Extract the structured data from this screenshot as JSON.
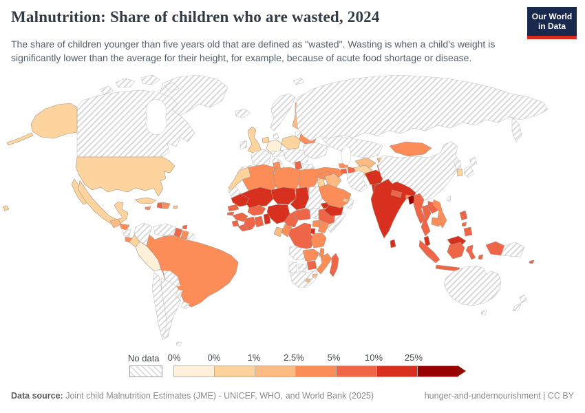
{
  "header": {
    "title": "Malnutrition: Share of children who are wasted, 2024",
    "subtitle": "The share of children younger than five years old that are defined as \"wasted\". Wasting is when a child’s weight is significantly lower than the average for their height, for example, because of acute food shortage or disease.",
    "logo": {
      "line1": "Our World",
      "line2": "in Data",
      "bg_color": "#18294d",
      "accent_color": "#dc2a20"
    }
  },
  "legend": {
    "no_data_label": "No data",
    "tick_labels": [
      "0%",
      "0%",
      "1%",
      "2.5%",
      "5%",
      "10%",
      "25%"
    ],
    "order": [
      "b0",
      "b1",
      "b2",
      "b3",
      "b4",
      "b5",
      "b6"
    ],
    "colors": {
      "b0": "#FEF0D9",
      "b1": "#FDD49E",
      "b2": "#FDBB84",
      "b3": "#FC8D59",
      "b4": "#EF6548",
      "b5": "#D7301F",
      "b6": "#990000"
    },
    "arrow_color": "#8d0b02"
  },
  "footer": {
    "source_label": "Data source:",
    "source_text": " Joint child Malnutrition Estimates (JME) - UNICEF, WHO, and World Bank (2025)",
    "right_text": "hunger-and-undernourishment | CC BY"
  },
  "map": {
    "countries": {
      "greenland": "nodata",
      "canada": "nodata",
      "canada-arctic1": "nodata",
      "canada-arctic2": "nodata",
      "canada-arctic3": "nodata",
      "canada-arctic4": "nodata",
      "iceland": "nodata",
      "svalbard": "nodata",
      "alaska": "b1",
      "aleutians": "b1",
      "usa": "b1",
      "hawaii": "b1",
      "mexico": "b1",
      "baja": "b1",
      "guatemala": "b2",
      "honduras": "b3",
      "nicaragua": "nodata",
      "costarica": "b3",
      "panama": "b3",
      "cuba": "b1",
      "jamaica": "b3",
      "haiti": "b4",
      "domrep": "b3",
      "puertorico": "b2",
      "trinidad": "b4",
      "colombia": "nodata",
      "venezuela": "nodata",
      "guyana": "b4",
      "suriname": "b3",
      "frguiana": "nodata",
      "ecuador": "b1",
      "peru": "b0",
      "brazil": "b3",
      "bolivia": "nodata",
      "paraguay": "nodata",
      "uruguay": "nodata",
      "chile": "nodata",
      "argentina": "nodata",
      "falklands": "nodata",
      "uk": "b1",
      "ireland": "nodata",
      "norway-sweden": "nodata",
      "denmark": "nodata",
      "finland": "b2",
      "baltics": "nodata",
      "germany": "b0",
      "lowcountries": "b1",
      "france": "nodata",
      "iberia": "nodata",
      "italy": "nodata",
      "alpine": "nodata",
      "poland": "b1",
      "centraleurope": "nodata",
      "belarus": "b3",
      "ukraine": "nodata",
      "serbia": "b4",
      "greece": "nodata",
      "bulgaria": "nodata",
      "turkey": "b3",
      "georgia": "b3",
      "armenia": "b4",
      "azerbaijan": "b4",
      "russia": "nodata",
      "kamchatka": "nodata",
      "kazakhstan": "nodata",
      "turkmenistan": "b1",
      "uzbekistan": "b2",
      "kyrgyzstan": "b2",
      "tajikistan": "b4",
      "iran": "nodata",
      "afghanistan": "b5",
      "pakistan": "b5",
      "syria": "b3",
      "israel-jordan": "b1",
      "iraq": "b2",
      "saudi": "b3",
      "yemen": "b5",
      "oman": "nodata",
      "uae": "b2",
      "mongolia": "b3",
      "china": "nodata",
      "nkorea": "nodata",
      "skorea": "b1",
      "japan-n": "nodata",
      "japan-s": "nodata",
      "taiwan": "nodata",
      "india": "b5",
      "nepal": "b4",
      "bhutan": "b3",
      "bangladesh": "b6",
      "srilanka": "b5",
      "myanmar": "b4",
      "thailand": "b4",
      "laos": "b4",
      "vietnam": "b3",
      "cambodia": "b3",
      "malaysia-pen": "b5",
      "malaysia-borneo": "b5",
      "sumatra": "b4",
      "java": "b4",
      "kalimantan": "b4",
      "sulawesi": "b4",
      "lesser-sunda": "b4",
      "timor": "b5",
      "maluku": "b4",
      "westpapua": "b4",
      "png": "nodata",
      "luzon": "b4",
      "visayas": "b4",
      "mindanao": "b4",
      "fiji": "b4",
      "australia": "nodata",
      "tasmania": "nodata",
      "nz-north": "nodata",
      "nz-south": "nodata",
      "morocco": "b1",
      "wsahara": "nodata",
      "algeria": "b3",
      "tunisia": "b3",
      "libya": "b3",
      "egypt": "b3",
      "mauritania": "b5",
      "senegal": "b4",
      "guineabissau": "b4",
      "guinea": "b4",
      "sierraleone": "b4",
      "liberia": "b4",
      "ivorycoast": "b4",
      "ghana": "b4",
      "togo-benin": "b5",
      "burkina": "b4",
      "mali": "b5",
      "niger": "b5",
      "nigeria": "b5",
      "chad": "b5",
      "cameroon": "b4",
      "car": "b4",
      "sudan": "nodata",
      "ssudan": "nodata",
      "eritrea": "b5",
      "djibouti": "b5",
      "ethiopia": "b4",
      "somalia": "nodata",
      "uganda": "b3",
      "kenya": "b3",
      "rwanda-burundi": "b5",
      "drc": "b4",
      "congo": "b3",
      "gabon": "b2",
      "tanzania": "b3",
      "angola": "nodata",
      "zambia": "b3",
      "malawi": "b3",
      "mozambique": "b3",
      "zimbabwe": "b4",
      "namibia": "nodata",
      "botswana": "nodata",
      "southafrica": "nodata",
      "lesotho": "b2",
      "eswatini": "b2",
      "madagascar": "b4"
    }
  }
}
